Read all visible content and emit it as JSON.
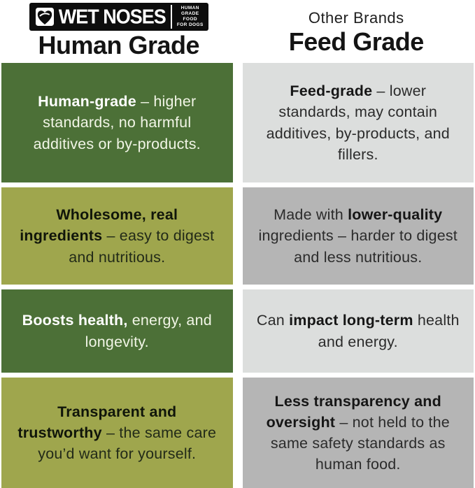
{
  "colors": {
    "green_dark": "#4c7037",
    "olive": "#9fa64d",
    "gray_light": "#dcdedd",
    "gray_mid": "#b5b5b5",
    "logo_bg": "#0d0d0d"
  },
  "header": {
    "left": {
      "logo": {
        "brand": "WET NOSES",
        "tagline": [
          "HUMAN",
          "GRADE",
          "FOOD",
          "FOR DOGS"
        ]
      },
      "title": "Human Grade"
    },
    "right": {
      "subtitle": "Other Brands",
      "title": "Feed Grade"
    }
  },
  "table": {
    "rows": [
      {
        "left": {
          "segments": [
            {
              "b": true,
              "t": "Human-grade"
            },
            {
              "t": " – higher standards, no harmful additives or by-products."
            }
          ]
        },
        "right": {
          "segments": [
            {
              "b": true,
              "t": "Feed-grade"
            },
            {
              "t": " – lower standards, may contain additives, by-products, and fillers."
            }
          ]
        }
      },
      {
        "left": {
          "segments": [
            {
              "b": true,
              "t": "Wholesome, real ingredients"
            },
            {
              "t": " – easy to digest and nutritious."
            }
          ]
        },
        "right": {
          "segments": [
            {
              "t": "Made with "
            },
            {
              "b": true,
              "t": "lower-quality"
            },
            {
              "t": " ingredients – harder to digest and less nutritious."
            }
          ]
        }
      },
      {
        "left": {
          "segments": [
            {
              "b": true,
              "t": "Boosts health,"
            },
            {
              "t": " energy, and longevity."
            }
          ]
        },
        "right": {
          "segments": [
            {
              "t": "Can "
            },
            {
              "b": true,
              "t": "impact long-term"
            },
            {
              "t": " health and energy."
            }
          ]
        }
      },
      {
        "left": {
          "segments": [
            {
              "b": true,
              "t": "Transparent and trustworthy"
            },
            {
              "t": " – the same care you’d want for yourself."
            }
          ]
        },
        "right": {
          "segments": [
            {
              "b": true,
              "t": "Less transparency and oversight"
            },
            {
              "t": " – not held to the same safety standards as human food."
            }
          ]
        }
      }
    ]
  },
  "chart_data": {
    "type": "table",
    "title": "Human Grade vs Feed Grade dog food comparison",
    "columns": [
      "Human Grade (Wet Noses)",
      "Feed Grade (Other Brands)"
    ],
    "rows": [
      [
        "Human-grade – higher standards, no harmful additives or by-products.",
        "Feed-grade – lower standards, may contain additives, by-products, and fillers."
      ],
      [
        "Wholesome, real ingredients – easy to digest and nutritious.",
        "Made with lower-quality ingredients – harder to digest and less nutritious."
      ],
      [
        "Boosts health, energy, and longevity.",
        "Can impact long-term health and energy."
      ],
      [
        "Transparent and trustworthy – the same care you’d want for yourself.",
        "Less transparency and oversight – not held to the same safety standards as human food."
      ]
    ]
  }
}
